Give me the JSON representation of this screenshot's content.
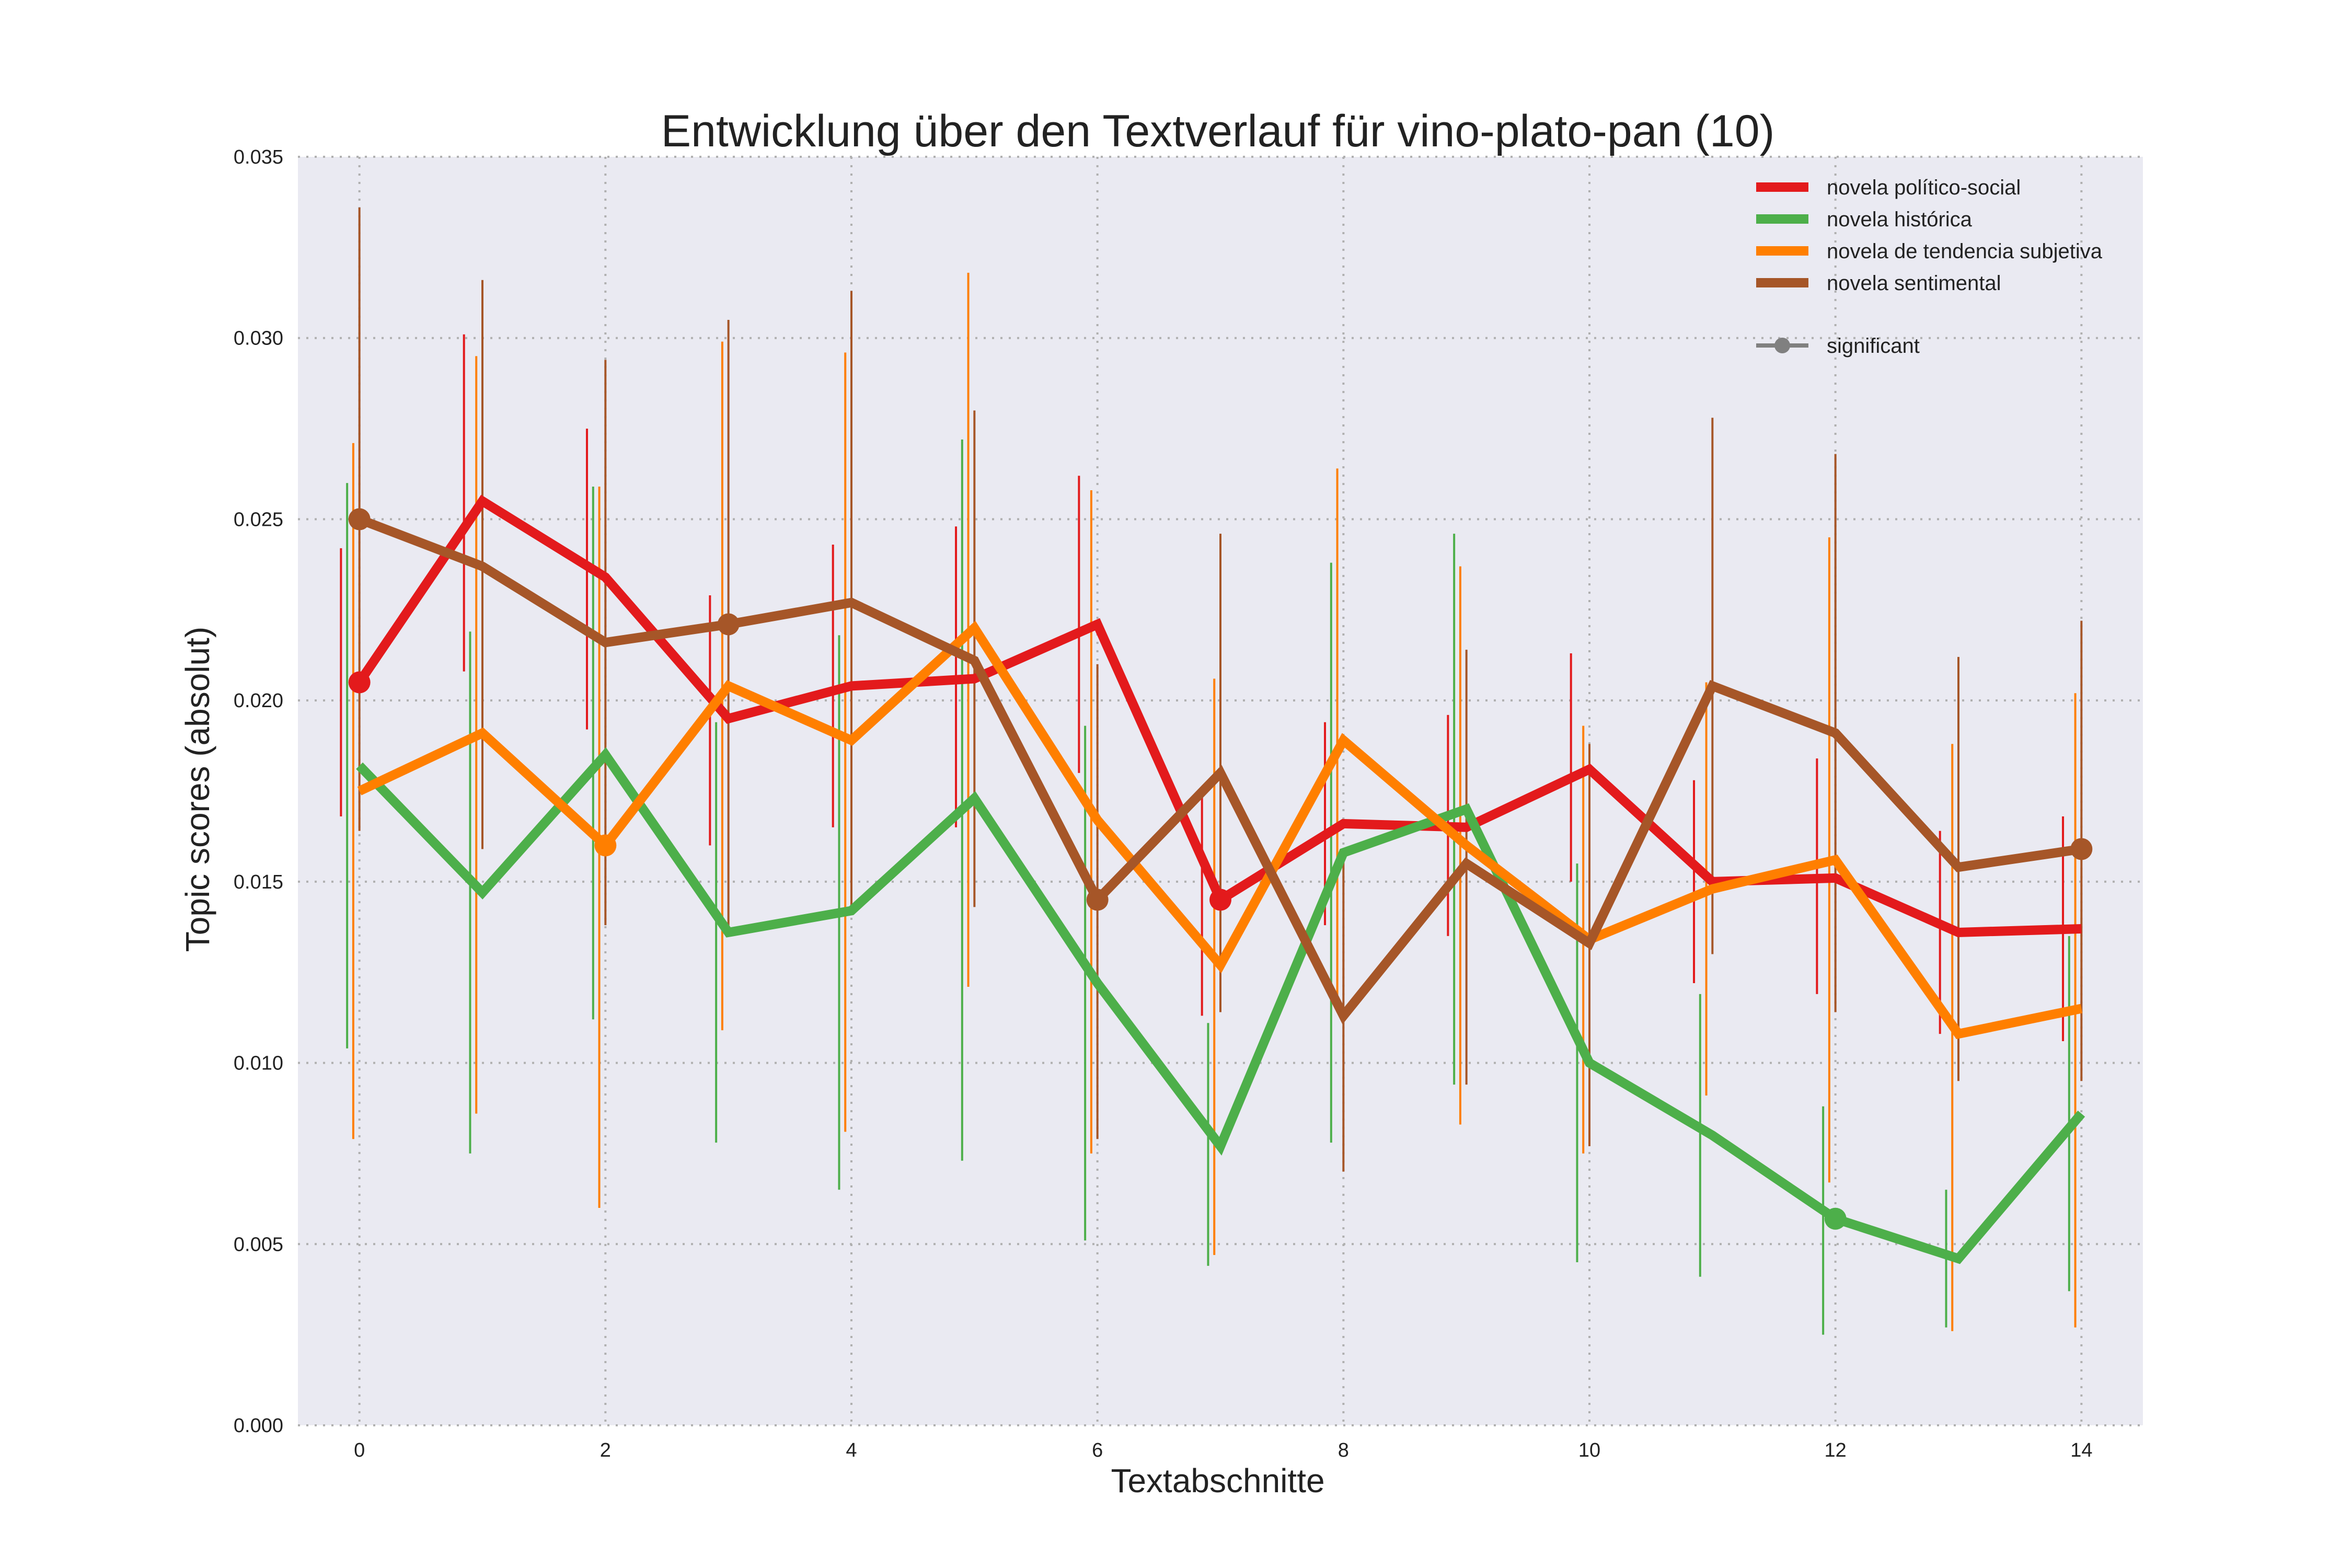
{
  "chart_data": {
    "type": "line",
    "title": "Entwicklung über den Textverlauf für vino-plato-pan (10)",
    "xlabel": "Textabschnitte",
    "ylabel": "Topic scores (absolut)",
    "xlim": [
      -0.5,
      14.5
    ],
    "ylim": [
      0,
      0.035
    ],
    "xticks": [
      0,
      2,
      4,
      6,
      8,
      10,
      12,
      14
    ],
    "xtick_labels": [
      "0",
      "2",
      "4",
      "6",
      "8",
      "10",
      "12",
      "14"
    ],
    "yticks": [
      0,
      0.005,
      0.01,
      0.015,
      0.02,
      0.025,
      0.03,
      0.035
    ],
    "ytick_labels": [
      "0.000",
      "0.005",
      "0.010",
      "0.015",
      "0.020",
      "0.025",
      "0.030",
      "0.035"
    ],
    "grid": true,
    "background": "#eaeaf2",
    "legend_position": "top-right",
    "x": [
      0,
      1,
      2,
      3,
      4,
      5,
      6,
      7,
      8,
      9,
      10,
      11,
      12,
      13,
      14
    ],
    "series": [
      {
        "name": "novela político-social",
        "color": "#e31a1c",
        "offset": -0.15,
        "values": [
          0.0205,
          0.0255,
          0.0234,
          0.0195,
          0.0204,
          0.0206,
          0.0221,
          0.0145,
          0.0166,
          0.0165,
          0.0181,
          0.015,
          0.0151,
          0.0136,
          0.0137
        ],
        "err_low": [
          0.0168,
          0.0208,
          0.0192,
          0.016,
          0.0165,
          0.0165,
          0.018,
          0.0113,
          0.0138,
          0.0135,
          0.015,
          0.0122,
          0.0119,
          0.0108,
          0.0106
        ],
        "err_high": [
          0.0242,
          0.0301,
          0.0275,
          0.0229,
          0.0243,
          0.0248,
          0.0262,
          0.0175,
          0.0194,
          0.0196,
          0.0213,
          0.0178,
          0.0184,
          0.0164,
          0.0168
        ],
        "significant": [
          0,
          7
        ]
      },
      {
        "name": "novela histórica",
        "color": "#4daf4a",
        "offset": -0.1,
        "values": [
          0.0182,
          0.0147,
          0.0185,
          0.0136,
          0.0142,
          0.0173,
          0.0122,
          0.0077,
          0.0158,
          0.017,
          0.01,
          0.008,
          0.0057,
          0.0046,
          0.0086
        ],
        "err_low": [
          0.0104,
          0.0075,
          0.0112,
          0.0078,
          0.0065,
          0.0073,
          0.0051,
          0.0044,
          0.0078,
          0.0094,
          0.0045,
          0.0041,
          0.0025,
          0.0027,
          0.0037
        ],
        "err_high": [
          0.026,
          0.0219,
          0.0259,
          0.0194,
          0.0218,
          0.0272,
          0.0193,
          0.0111,
          0.0238,
          0.0246,
          0.0155,
          0.0119,
          0.0088,
          0.0065,
          0.0135
        ],
        "significant": [
          12
        ]
      },
      {
        "name": "novela de tendencia subjetiva",
        "color": "#ff7f00",
        "offset": -0.05,
        "values": [
          0.0175,
          0.0191,
          0.016,
          0.0204,
          0.0189,
          0.022,
          0.0167,
          0.0127,
          0.0189,
          0.016,
          0.0134,
          0.0148,
          0.0156,
          0.0108,
          0.0115
        ],
        "err_low": [
          0.0079,
          0.0086,
          0.006,
          0.0109,
          0.0081,
          0.0121,
          0.0075,
          0.0047,
          0.0114,
          0.0083,
          0.0075,
          0.0091,
          0.0067,
          0.0026,
          0.0027
        ],
        "err_high": [
          0.0271,
          0.0295,
          0.0259,
          0.0299,
          0.0296,
          0.0318,
          0.0258,
          0.0206,
          0.0264,
          0.0237,
          0.0193,
          0.0205,
          0.0245,
          0.0188,
          0.0202
        ],
        "significant": [
          2
        ]
      },
      {
        "name": "novela sentimental",
        "color": "#a65628",
        "offset": 0.0,
        "values": [
          0.025,
          0.0237,
          0.0216,
          0.0221,
          0.0227,
          0.0211,
          0.0145,
          0.018,
          0.0113,
          0.0155,
          0.0133,
          0.0204,
          0.0191,
          0.0154,
          0.0159
        ],
        "err_low": [
          0.0164,
          0.0159,
          0.0138,
          0.0137,
          0.0141,
          0.0143,
          0.0079,
          0.0114,
          0.007,
          0.0094,
          0.0077,
          0.013,
          0.0114,
          0.0095,
          0.0095
        ],
        "err_high": [
          0.0336,
          0.0316,
          0.0294,
          0.0305,
          0.0313,
          0.028,
          0.021,
          0.0246,
          0.0156,
          0.0214,
          0.0188,
          0.0278,
          0.0268,
          0.0212,
          0.0222
        ],
        "significant": [
          0,
          3,
          6,
          14
        ]
      }
    ],
    "significance_legend": {
      "label": "significant",
      "color": "#808080"
    }
  }
}
